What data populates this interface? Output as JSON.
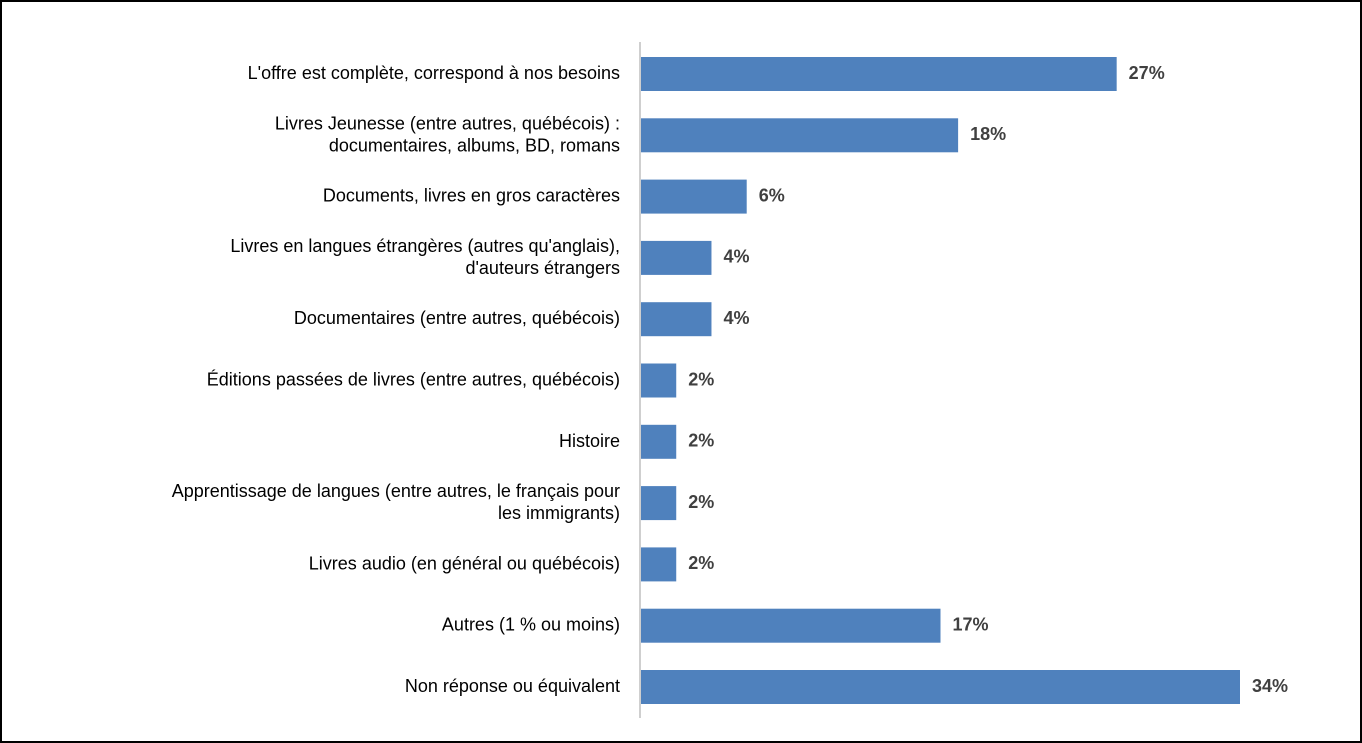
{
  "chart_data": {
    "type": "barh",
    "categories": [
      "L'offre est complète, correspond à nos besoins",
      "Livres Jeunesse (entre autres, québécois) :\n documentaires, albums, BD, romans",
      "Documents, livres en gros caractères",
      "Livres en langues étrangères (autres qu'anglais),\nd'auteurs étrangers",
      "Documentaires (entre autres, québécois)",
      "Éditions passées de livres (entre autres, québécois)",
      "Histoire",
      "Apprentissage de langues (entre autres, le français pour\nles immigrants)",
      "Livres audio (en général ou québécois)",
      "Autres (1 % ou moins)",
      "Non réponse ou équivalent"
    ],
    "values": [
      27,
      18,
      6,
      4,
      4,
      2,
      2,
      2,
      2,
      17,
      34
    ],
    "value_labels": [
      "27%",
      "18%",
      "6%",
      "4%",
      "4%",
      "2%",
      "2%",
      "2%",
      "2%",
      "17%",
      "34%"
    ],
    "color": "#4f81bd"
  }
}
